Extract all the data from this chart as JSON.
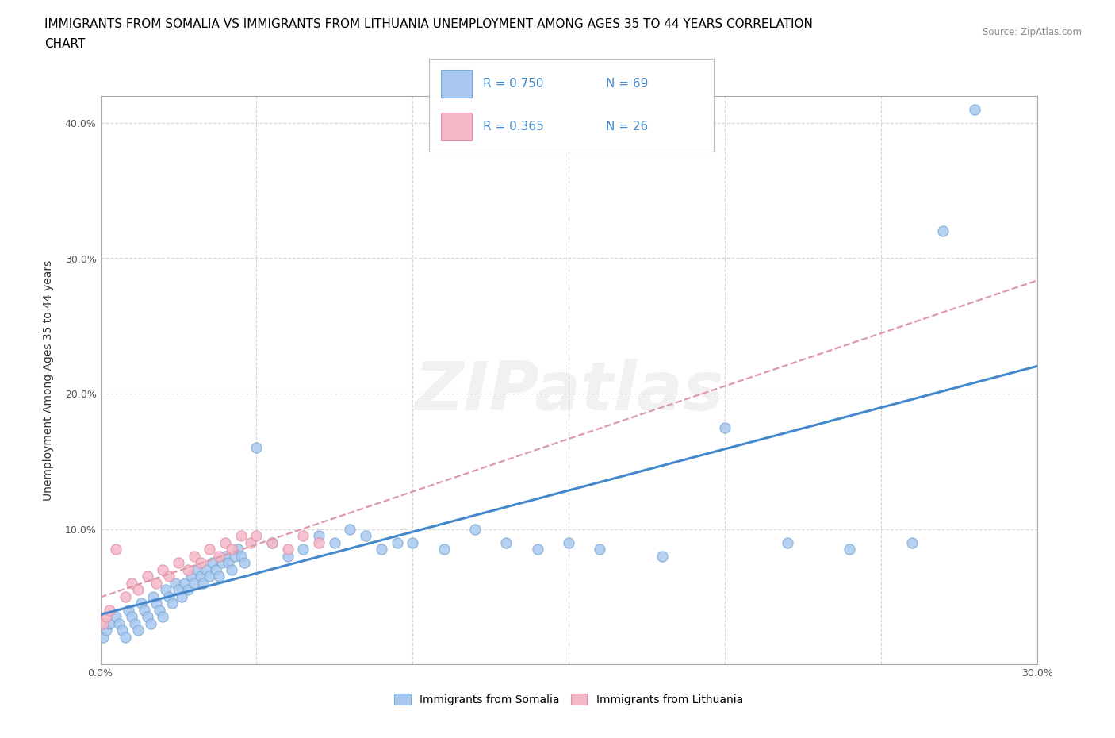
{
  "title_line1": "IMMIGRANTS FROM SOMALIA VS IMMIGRANTS FROM LITHUANIA UNEMPLOYMENT AMONG AGES 35 TO 44 YEARS CORRELATION",
  "title_line2": "CHART",
  "source_text": "Source: ZipAtlas.com",
  "ylabel": "Unemployment Among Ages 35 to 44 years",
  "xlim": [
    0.0,
    0.3
  ],
  "ylim": [
    0.0,
    0.42
  ],
  "xticks": [
    0.0,
    0.05,
    0.1,
    0.15,
    0.2,
    0.25,
    0.3
  ],
  "yticks": [
    0.0,
    0.1,
    0.2,
    0.3,
    0.4
  ],
  "somalia_color": "#a8c8f0",
  "somalia_edge": "#7aaad0",
  "lithuania_color": "#f5b8c8",
  "lithuania_edge": "#e090a8",
  "somalia_line_color": "#4488cc",
  "lithuania_line_color": "#dd99aa",
  "R_somalia": 0.75,
  "N_somalia": 69,
  "R_lithuania": 0.365,
  "N_lithuania": 26,
  "background_color": "#ffffff",
  "grid_color": "#cccccc",
  "title_fontsize": 11,
  "axis_label_fontsize": 10,
  "tick_fontsize": 9,
  "legend_fontsize": 11,
  "somalia_x": [
    0.001,
    0.002,
    0.003,
    0.005,
    0.006,
    0.007,
    0.008,
    0.009,
    0.01,
    0.011,
    0.012,
    0.013,
    0.014,
    0.015,
    0.016,
    0.017,
    0.018,
    0.019,
    0.02,
    0.021,
    0.022,
    0.023,
    0.024,
    0.025,
    0.026,
    0.027,
    0.028,
    0.029,
    0.03,
    0.031,
    0.032,
    0.033,
    0.034,
    0.035,
    0.036,
    0.037,
    0.038,
    0.039,
    0.04,
    0.041,
    0.042,
    0.043,
    0.044,
    0.045,
    0.046,
    0.05,
    0.055,
    0.06,
    0.065,
    0.07,
    0.075,
    0.08,
    0.085,
    0.09,
    0.095,
    0.1,
    0.11,
    0.12,
    0.13,
    0.14,
    0.15,
    0.16,
    0.18,
    0.2,
    0.22,
    0.24,
    0.26,
    0.27,
    0.28
  ],
  "somalia_y": [
    0.02,
    0.025,
    0.03,
    0.035,
    0.03,
    0.025,
    0.02,
    0.04,
    0.035,
    0.03,
    0.025,
    0.045,
    0.04,
    0.035,
    0.03,
    0.05,
    0.045,
    0.04,
    0.035,
    0.055,
    0.05,
    0.045,
    0.06,
    0.055,
    0.05,
    0.06,
    0.055,
    0.065,
    0.06,
    0.07,
    0.065,
    0.06,
    0.07,
    0.065,
    0.075,
    0.07,
    0.065,
    0.075,
    0.08,
    0.075,
    0.07,
    0.08,
    0.085,
    0.08,
    0.075,
    0.16,
    0.09,
    0.08,
    0.085,
    0.095,
    0.09,
    0.1,
    0.095,
    0.085,
    0.09,
    0.09,
    0.085,
    0.1,
    0.09,
    0.085,
    0.09,
    0.085,
    0.08,
    0.175,
    0.09,
    0.085,
    0.09,
    0.32,
    0.41
  ],
  "lithuania_x": [
    0.001,
    0.002,
    0.003,
    0.005,
    0.008,
    0.01,
    0.012,
    0.015,
    0.018,
    0.02,
    0.022,
    0.025,
    0.028,
    0.03,
    0.032,
    0.035,
    0.038,
    0.04,
    0.042,
    0.045,
    0.048,
    0.05,
    0.055,
    0.06,
    0.065,
    0.07
  ],
  "lithuania_y": [
    0.03,
    0.035,
    0.04,
    0.085,
    0.05,
    0.06,
    0.055,
    0.065,
    0.06,
    0.07,
    0.065,
    0.075,
    0.07,
    0.08,
    0.075,
    0.085,
    0.08,
    0.09,
    0.085,
    0.095,
    0.09,
    0.095,
    0.09,
    0.085,
    0.095,
    0.09
  ]
}
